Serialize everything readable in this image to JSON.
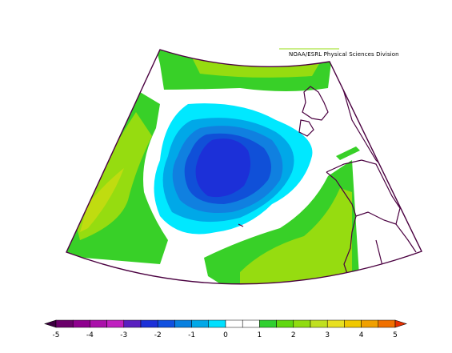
{
  "credit": "NOAA/ESRL Physical Sciences Division",
  "colorbar": {
    "tick_labels": [
      "-5",
      "-4",
      "-3",
      "-2",
      "-1",
      "0",
      "1",
      "2",
      "3",
      "4",
      "5"
    ],
    "range": [
      -5,
      5
    ],
    "step": 0.5,
    "colors": [
      "#3c0040",
      "#6a006a",
      "#8e008e",
      "#aa10aa",
      "#c020c0",
      "#5a20c0",
      "#1c30d8",
      "#1050e0",
      "#0880e0",
      "#00a8e8",
      "#00e0ff",
      "#ffffff",
      "#ffffff",
      "#30d030",
      "#60d810",
      "#90dc10",
      "#c0e020",
      "#e8e020",
      "#f0c800",
      "#f0a000",
      "#f07000",
      "#e83000"
    ]
  },
  "map_colors": {
    "land_outline": "#4a0040",
    "frame": "#4a0040",
    "green": "#38d028",
    "lightgreen": "#96dc10",
    "yellowgreen": "#c0dc10",
    "cyan": "#00e8ff",
    "skyblue": "#00a8e8",
    "midblue": "#1080e0",
    "blue": "#1050d8",
    "deepblue": "#1c30d8"
  }
}
